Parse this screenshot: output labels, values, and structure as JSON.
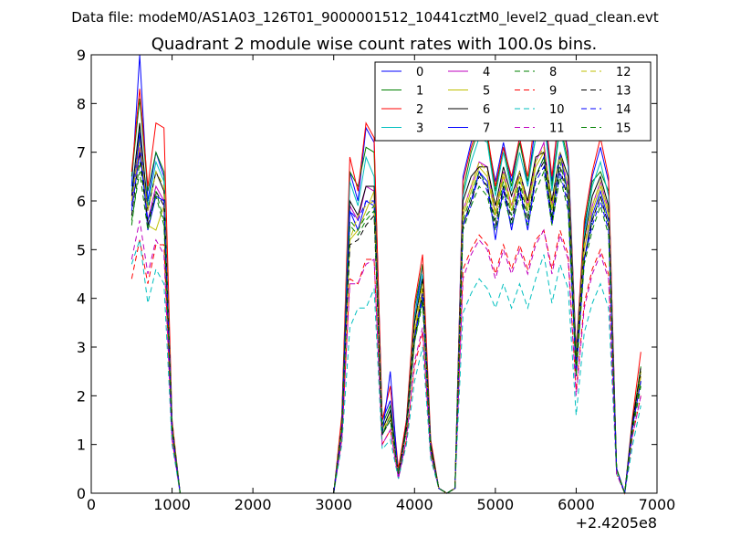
{
  "suptitle": "Data file: modeM0/AS1A03_126T01_9000001512_10441cztM0_level2_quad_clean.evt",
  "chart_data": {
    "type": "line",
    "title": "Quadrant 2 module wise count rates with 100.0s bins.",
    "xlabel": "",
    "ylabel": "",
    "x_offset_label": "+2.4205e8",
    "xlim": [
      0,
      7000
    ],
    "ylim": [
      0,
      9
    ],
    "x_ticks": [
      "0",
      "1000",
      "2000",
      "3000",
      "4000",
      "5000",
      "6000",
      "7000"
    ],
    "y_ticks": [
      "0",
      "1",
      "2",
      "3",
      "4",
      "5",
      "6",
      "7",
      "8",
      "9"
    ],
    "grid": false,
    "legend_position": "top-right",
    "legend_columns": 4,
    "x": [
      500,
      600,
      700,
      800,
      900,
      1000,
      1100,
      1200,
      1300,
      1400,
      1500,
      1600,
      1700,
      1800,
      1900,
      2000,
      2100,
      2200,
      2300,
      2400,
      2500,
      2600,
      2700,
      2800,
      2900,
      3000,
      3100,
      3200,
      3300,
      3400,
      3500,
      3600,
      3700,
      3800,
      3900,
      4000,
      4100,
      4200,
      4300,
      4400,
      4500,
      4600,
      4700,
      4800,
      4900,
      5000,
      5100,
      5200,
      5300,
      5400,
      5500,
      5600,
      5700,
      5800,
      5900,
      6000,
      6100,
      6200,
      6300,
      6400,
      6500,
      6600,
      6700,
      6800
    ],
    "series": [
      {
        "name": "0",
        "color": "#0000ff",
        "dash": "solid",
        "values": [
          6.3,
          9.0,
          6.0,
          7.0,
          6.5,
          1.4,
          0,
          0,
          0,
          0,
          0,
          0,
          0,
          0,
          0,
          0,
          0,
          0,
          0,
          0,
          0,
          0,
          0,
          0,
          0,
          0,
          1.5,
          6.6,
          6.0,
          7.5,
          7.2,
          1.5,
          1.9,
          0.4,
          1.5,
          3.6,
          4.7,
          1.0,
          0.1,
          0,
          0.1,
          6.5,
          7.2,
          7.7,
          7.3,
          6.4,
          7.2,
          6.4,
          7.3,
          6.3,
          7.6,
          7.9,
          6.4,
          8.0,
          7.0,
          2.9,
          5.4,
          6.5,
          7.1,
          6.4,
          0.5,
          0,
          1.5,
          2.5
        ]
      },
      {
        "name": "1",
        "color": "#008000",
        "dash": "solid",
        "values": [
          6.5,
          8.1,
          6.2,
          7.0,
          6.6,
          1.4,
          0,
          0,
          0,
          0,
          0,
          0,
          0,
          0,
          0,
          0,
          0,
          0,
          0,
          0,
          0,
          0,
          0,
          0,
          0,
          0,
          1.5,
          6.6,
          6.3,
          7.1,
          7.0,
          1.4,
          1.8,
          0.4,
          1.4,
          3.8,
          4.7,
          1.0,
          0.1,
          0,
          0.1,
          6.2,
          7.0,
          7.5,
          7.3,
          6.2,
          7.1,
          6.3,
          7.2,
          6.4,
          7.3,
          7.7,
          6.3,
          7.6,
          6.8,
          2.8,
          5.5,
          6.4,
          6.6,
          6.2,
          0.5,
          0,
          1.5,
          2.6
        ]
      },
      {
        "name": "2",
        "color": "#ff0000",
        "dash": "solid",
        "values": [
          6.6,
          8.3,
          6.3,
          7.6,
          7.5,
          1.5,
          0,
          0,
          0,
          0,
          0,
          0,
          0,
          0,
          0,
          0,
          0,
          0,
          0,
          0,
          0,
          0,
          0,
          0,
          0,
          0,
          1.6,
          6.9,
          6.2,
          7.6,
          7.3,
          1.5,
          2.2,
          0.5,
          1.5,
          3.9,
          4.9,
          1.1,
          0.1,
          0,
          0.1,
          6.4,
          7.1,
          7.6,
          7.4,
          6.3,
          7.1,
          6.5,
          7.3,
          6.5,
          7.8,
          8.0,
          6.5,
          8.0,
          6.9,
          2.9,
          5.6,
          6.6,
          7.3,
          6.5,
          0.5,
          0,
          1.6,
          2.9
        ]
      },
      {
        "name": "3",
        "color": "#00bfbf",
        "dash": "solid",
        "values": [
          6.2,
          7.5,
          5.9,
          6.8,
          6.4,
          1.4,
          0,
          0,
          0,
          0,
          0,
          0,
          0,
          0,
          0,
          0,
          0,
          0,
          0,
          0,
          0,
          0,
          0,
          0,
          0,
          0,
          1.4,
          6.4,
          5.9,
          6.9,
          6.5,
          1.3,
          1.7,
          0.4,
          1.4,
          3.6,
          4.5,
          1.0,
          0.1,
          0,
          0.1,
          6.1,
          6.8,
          7.3,
          7.2,
          6.1,
          7.0,
          6.2,
          7.0,
          6.3,
          7.3,
          7.7,
          6.2,
          7.5,
          6.7,
          2.8,
          5.3,
          6.3,
          6.8,
          6.1,
          0.5,
          0,
          1.5,
          2.5
        ]
      },
      {
        "name": "4",
        "color": "#bf00bf",
        "dash": "solid",
        "values": [
          6.0,
          7.1,
          5.6,
          6.3,
          6.0,
          1.3,
          0,
          0,
          0,
          0,
          0,
          0,
          0,
          0,
          0,
          0,
          0,
          0,
          0,
          0,
          0,
          0,
          0,
          0,
          0,
          0,
          1.3,
          5.9,
          5.6,
          6.3,
          6.2,
          1.2,
          1.6,
          0.4,
          1.3,
          3.3,
          4.2,
          0.9,
          0.1,
          0,
          0.1,
          5.8,
          6.3,
          6.8,
          6.7,
          5.7,
          6.6,
          5.9,
          6.6,
          5.9,
          6.8,
          7.2,
          5.9,
          7.0,
          6.3,
          2.6,
          5.0,
          5.9,
          6.4,
          5.8,
          0.5,
          0,
          1.4,
          2.4
        ]
      },
      {
        "name": "5",
        "color": "#bfbf00",
        "dash": "solid",
        "values": [
          5.9,
          7.3,
          5.5,
          5.4,
          5.9,
          1.3,
          0,
          0,
          0,
          0,
          0,
          0,
          0,
          0,
          0,
          0,
          0,
          0,
          0,
          0,
          0,
          0,
          0,
          0,
          0,
          0,
          1.3,
          5.2,
          5.4,
          5.8,
          6.2,
          1.2,
          1.6,
          0.4,
          1.3,
          3.3,
          4.2,
          0.9,
          0.1,
          0,
          0.1,
          5.7,
          6.2,
          6.7,
          6.5,
          5.7,
          6.5,
          5.8,
          6.5,
          5.8,
          6.7,
          7.0,
          5.8,
          6.9,
          6.2,
          2.6,
          5.0,
          5.8,
          6.3,
          5.7,
          0.5,
          0,
          1.4,
          2.4
        ]
      },
      {
        "name": "6",
        "color": "#000000",
        "dash": "solid",
        "values": [
          6.1,
          7.6,
          5.8,
          6.6,
          6.2,
          1.4,
          0,
          0,
          0,
          0,
          0,
          0,
          0,
          0,
          0,
          0,
          0,
          0,
          0,
          0,
          0,
          0,
          0,
          0,
          0,
          0,
          1.4,
          6.0,
          5.7,
          6.3,
          6.3,
          1.3,
          1.7,
          0.4,
          1.4,
          3.5,
          4.4,
          1.0,
          0.1,
          0,
          0.1,
          6.0,
          6.5,
          6.7,
          6.7,
          5.9,
          6.7,
          6.1,
          6.6,
          6.0,
          6.9,
          7.0,
          6.0,
          7.0,
          6.5,
          2.7,
          5.2,
          6.1,
          6.5,
          5.9,
          0.5,
          0,
          1.5,
          2.5
        ]
      },
      {
        "name": "7",
        "color": "#0000ff",
        "dash": "solid",
        "values": [
          5.9,
          7.4,
          5.4,
          6.1,
          6.0,
          1.3,
          0,
          0,
          0,
          0,
          0,
          0,
          0,
          0,
          0,
          0,
          0,
          0,
          0,
          0,
          0,
          0,
          0,
          0,
          0,
          0,
          1.3,
          5.8,
          5.4,
          6.0,
          5.9,
          1.2,
          2.5,
          0.3,
          1.3,
          3.2,
          4.0,
          0.9,
          0.1,
          0,
          0.1,
          5.5,
          6.0,
          6.6,
          6.4,
          5.2,
          6.3,
          5.4,
          6.3,
          5.4,
          6.5,
          6.9,
          5.6,
          7.0,
          6.1,
          2.5,
          4.8,
          5.7,
          6.2,
          5.6,
          0.5,
          0,
          1.4,
          2.3
        ]
      },
      {
        "name": "8",
        "color": "#008000",
        "dash": "dashed",
        "values": [
          5.5,
          6.8,
          5.6,
          6.1,
          5.5,
          1.3,
          0,
          0,
          0,
          0,
          0,
          0,
          0,
          0,
          0,
          0,
          0,
          0,
          0,
          0,
          0,
          0,
          0,
          0,
          0,
          0,
          1.3,
          5.6,
          5.4,
          5.7,
          5.9,
          1.2,
          1.6,
          0.4,
          1.3,
          3.1,
          4.0,
          0.9,
          0.1,
          0,
          0.1,
          5.6,
          6.1,
          6.6,
          6.3,
          5.6,
          6.4,
          5.7,
          6.4,
          5.7,
          6.5,
          6.9,
          5.7,
          6.8,
          6.1,
          2.5,
          4.8,
          5.6,
          6.1,
          5.5,
          0.5,
          0,
          1.4,
          2.3
        ]
      },
      {
        "name": "9",
        "color": "#ff0000",
        "dash": "dashed",
        "values": [
          4.4,
          5.2,
          4.3,
          5.1,
          5.1,
          1.1,
          0,
          0,
          0,
          0,
          0,
          0,
          0,
          0,
          0,
          0,
          0,
          0,
          0,
          0,
          0,
          0,
          0,
          0,
          0,
          0,
          1.1,
          4.4,
          4.3,
          4.8,
          4.8,
          1.0,
          1.3,
          0.3,
          1.1,
          2.6,
          3.3,
          0.8,
          0.1,
          0,
          0.1,
          4.6,
          5.0,
          5.3,
          5.1,
          4.5,
          5.1,
          4.6,
          5.1,
          4.6,
          5.2,
          5.4,
          4.6,
          5.4,
          4.9,
          2.1,
          3.9,
          4.6,
          5.0,
          4.5,
          0.4,
          0,
          1.2,
          2.0
        ]
      },
      {
        "name": "10",
        "color": "#00bfbf",
        "dash": "dashed",
        "values": [
          4.7,
          5.2,
          3.9,
          4.6,
          4.3,
          1.0,
          0,
          0,
          0,
          0,
          0,
          0,
          0,
          0,
          0,
          0,
          0,
          0,
          0,
          0,
          0,
          0,
          0,
          0,
          0,
          0,
          1.0,
          3.4,
          3.8,
          3.8,
          4.2,
          0.9,
          1.1,
          0.3,
          1.0,
          2.3,
          3.0,
          0.7,
          0.1,
          0,
          0.1,
          3.7,
          4.1,
          4.4,
          4.2,
          3.8,
          4.3,
          3.8,
          4.3,
          3.8,
          4.4,
          4.9,
          3.9,
          4.7,
          4.2,
          1.6,
          3.3,
          3.9,
          4.3,
          3.8,
          0.4,
          0,
          1.0,
          1.8
        ]
      },
      {
        "name": "11",
        "color": "#bf00bf",
        "dash": "dashed",
        "values": [
          4.8,
          5.6,
          4.5,
          5.2,
          4.9,
          1.1,
          0,
          0,
          0,
          0,
          0,
          0,
          0,
          0,
          0,
          0,
          0,
          0,
          0,
          0,
          0,
          0,
          0,
          0,
          0,
          0,
          1.1,
          4.3,
          4.3,
          4.7,
          4.8,
          1.0,
          1.3,
          0.3,
          1.1,
          2.7,
          3.4,
          0.8,
          0.1,
          0,
          0.1,
          4.4,
          4.9,
          5.2,
          5.0,
          4.4,
          5.0,
          4.5,
          5.0,
          4.5,
          5.1,
          5.4,
          4.5,
          5.3,
          4.8,
          2.0,
          3.8,
          4.5,
          4.9,
          4.4,
          0.4,
          0,
          1.2,
          2.0
        ]
      },
      {
        "name": "12",
        "color": "#bfbf00",
        "dash": "dashed",
        "values": [
          6.0,
          7.2,
          5.8,
          6.6,
          6.3,
          1.4,
          0,
          0,
          0,
          0,
          0,
          0,
          0,
          0,
          0,
          0,
          0,
          0,
          0,
          0,
          0,
          0,
          0,
          0,
          0,
          0,
          1.4,
          5.2,
          5.7,
          5.9,
          6.0,
          1.3,
          1.6,
          0.4,
          1.3,
          3.4,
          4.3,
          0.9,
          0.1,
          0,
          0.1,
          5.8,
          6.3,
          6.8,
          6.6,
          5.8,
          6.6,
          5.9,
          6.6,
          5.9,
          6.8,
          7.1,
          5.9,
          7.0,
          6.3,
          2.6,
          5.1,
          5.9,
          6.4,
          5.8,
          0.5,
          0,
          1.4,
          2.5
        ]
      },
      {
        "name": "13",
        "color": "#000000",
        "dash": "dashed",
        "values": [
          5.7,
          7.0,
          5.5,
          6.2,
          5.9,
          1.3,
          0,
          0,
          0,
          0,
          0,
          0,
          0,
          0,
          0,
          0,
          0,
          0,
          0,
          0,
          0,
          0,
          0,
          0,
          0,
          0,
          1.3,
          5.1,
          5.2,
          5.5,
          5.7,
          1.2,
          1.5,
          0.4,
          1.3,
          3.2,
          4.1,
          0.9,
          0.1,
          0,
          0.1,
          5.5,
          6.0,
          6.5,
          6.3,
          5.5,
          6.3,
          5.6,
          6.3,
          5.6,
          6.5,
          6.8,
          5.6,
          6.7,
          6.0,
          2.5,
          4.8,
          5.6,
          6.1,
          5.5,
          0.5,
          0,
          1.4,
          2.6
        ]
      },
      {
        "name": "14",
        "color": "#0000ff",
        "dash": "dashed",
        "values": [
          5.8,
          7.0,
          5.6,
          6.1,
          6.0,
          1.3,
          0,
          0,
          0,
          0,
          0,
          0,
          0,
          0,
          0,
          0,
          0,
          0,
          0,
          0,
          0,
          0,
          0,
          0,
          0,
          0,
          1.3,
          5.8,
          5.6,
          6.0,
          6.0,
          1.2,
          1.5,
          0.4,
          1.3,
          3.2,
          4.1,
          0.9,
          0.1,
          0,
          0.1,
          5.5,
          5.9,
          6.6,
          6.2,
          5.4,
          6.2,
          5.5,
          6.2,
          5.5,
          6.4,
          6.7,
          5.5,
          6.6,
          5.9,
          2.4,
          4.8,
          5.5,
          6.0,
          5.4,
          0.5,
          0,
          1.4,
          2.3
        ]
      },
      {
        "name": "15",
        "color": "#008000",
        "dash": "dashed",
        "values": [
          5.6,
          6.6,
          5.4,
          6.2,
          5.6,
          1.3,
          0,
          0,
          0,
          0,
          0,
          0,
          0,
          0,
          0,
          0,
          0,
          0,
          0,
          0,
          0,
          0,
          0,
          0,
          0,
          0,
          1.3,
          5.5,
          5.3,
          5.6,
          5.8,
          1.2,
          1.5,
          0.4,
          1.3,
          3.1,
          3.9,
          0.9,
          0.1,
          0,
          0.1,
          5.4,
          5.9,
          6.3,
          6.1,
          5.4,
          6.1,
          5.5,
          6.1,
          5.5,
          6.2,
          6.6,
          5.5,
          6.5,
          5.8,
          2.4,
          4.7,
          5.4,
          5.9,
          5.3,
          0.5,
          0,
          1.3,
          2.2
        ]
      }
    ]
  }
}
